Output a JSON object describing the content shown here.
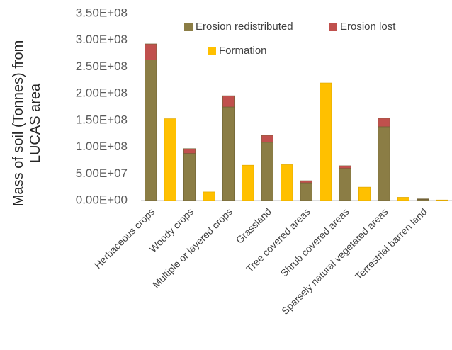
{
  "chart_data": {
    "type": "bar",
    "stacked": true,
    "y_label": "Mass of soil (Tonnes) from LUCAS area",
    "categories": [
      "Herbaceous crops",
      null,
      "Woody crops",
      null,
      "Multiple or layered crops",
      null,
      "Grassland",
      null,
      "Tree covered areas",
      null,
      "Shrub covered areas",
      null,
      "Sparsely natural vegetated areas",
      null,
      "Terrestrial barren land",
      null
    ],
    "series": [
      {
        "name": "Erosion redistributed",
        "color": "#8b7d45",
        "values": [
          263000000,
          null,
          88000000,
          null,
          175000000,
          null,
          109000000,
          null,
          33000000,
          null,
          60000000,
          null,
          138000000,
          null,
          2000000,
          null
        ]
      },
      {
        "name": "Erosion lost",
        "color": "#c0504d",
        "values": [
          30000000,
          null,
          9000000,
          null,
          21000000,
          null,
          13000000,
          null,
          4000000,
          null,
          5000000,
          null,
          16000000,
          null,
          1000000,
          null
        ]
      },
      {
        "name": "Formation",
        "color": "#ffc000",
        "values": [
          null,
          153000000,
          null,
          16000000,
          null,
          66000000,
          null,
          67000000,
          null,
          220000000,
          null,
          25000000,
          null,
          6000000,
          null,
          1000000
        ]
      }
    ],
    "ylim": [
      0,
      350000000
    ],
    "yticks": [
      {
        "value": 0,
        "label": "0.00E+00"
      },
      {
        "value": 50000000,
        "label": "5.00E+07"
      },
      {
        "value": 100000000,
        "label": "1.00E+08"
      },
      {
        "value": 150000000,
        "label": "1.50E+08"
      },
      {
        "value": 200000000,
        "label": "2.00E+08"
      },
      {
        "value": 250000000,
        "label": "2.50E+08"
      },
      {
        "value": 300000000,
        "label": "3.00E+08"
      },
      {
        "value": 350000000,
        "label": "3.50E+08"
      }
    ],
    "grid": false
  }
}
